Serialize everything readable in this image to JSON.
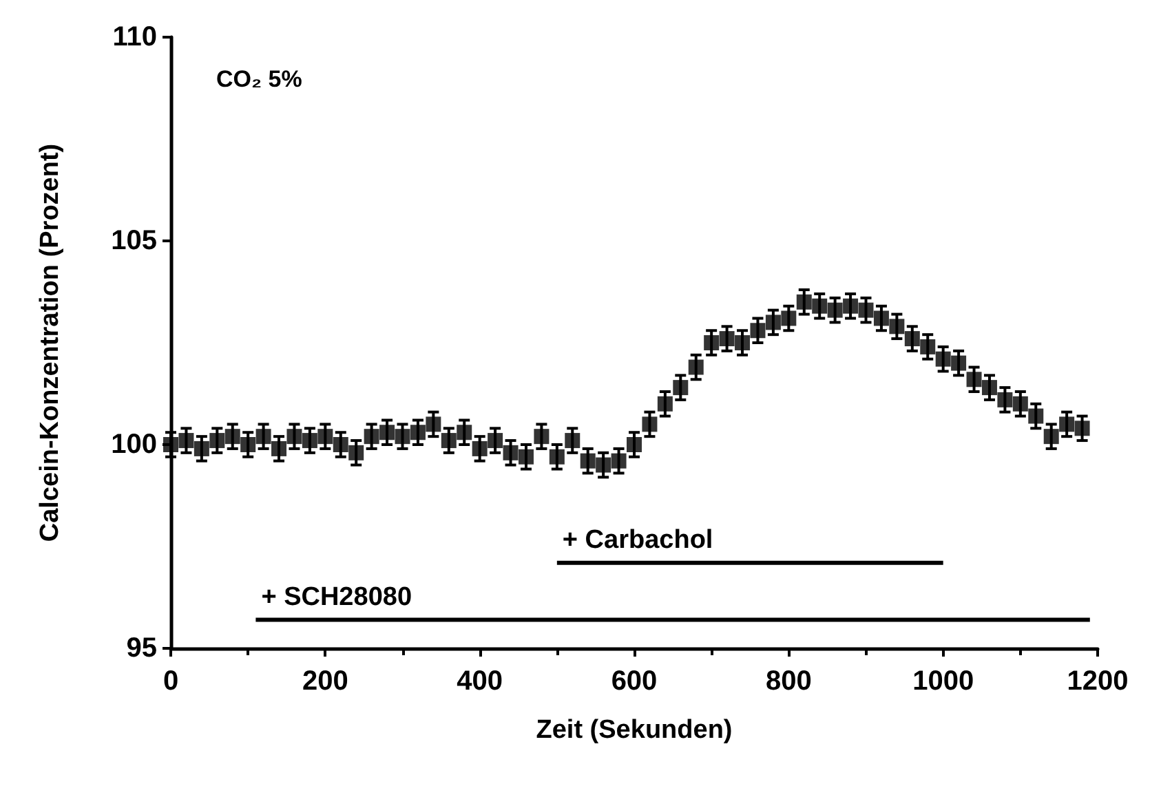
{
  "chart_data": {
    "type": "scatter",
    "xlabel": "Zeit (Sekunden)",
    "ylabel": "Calcein-Konzentration (Prozent)",
    "annotations": [
      "CO₂ 5%"
    ],
    "x": [
      0,
      20,
      40,
      60,
      80,
      100,
      120,
      140,
      160,
      180,
      200,
      220,
      240,
      260,
      280,
      300,
      320,
      340,
      360,
      380,
      400,
      420,
      440,
      460,
      480,
      500,
      520,
      540,
      560,
      580,
      600,
      620,
      640,
      660,
      680,
      700,
      720,
      740,
      760,
      780,
      800,
      820,
      840,
      860,
      880,
      900,
      920,
      940,
      960,
      980,
      1000,
      1020,
      1040,
      1060,
      1080,
      1100,
      1120,
      1140,
      1160,
      1180
    ],
    "series": [
      {
        "color": "#000000",
        "values": [
          100.0,
          100.1,
          99.9,
          100.1,
          100.2,
          100.0,
          100.2,
          99.9,
          100.2,
          100.1,
          100.2,
          100.0,
          99.8,
          100.2,
          100.3,
          100.2,
          100.3,
          100.5,
          100.1,
          100.3,
          99.9,
          100.1,
          99.8,
          99.7,
          100.2,
          99.7,
          100.1,
          99.6,
          99.5,
          99.6,
          100.0,
          100.5,
          101.0,
          101.4,
          101.9,
          102.5,
          102.6,
          102.5,
          102.8,
          103.0,
          103.1,
          103.5,
          103.4,
          103.3,
          103.4,
          103.3,
          103.1,
          102.9,
          102.6,
          102.4,
          102.1,
          102.0,
          101.6,
          101.4,
          101.1,
          101.0,
          100.7,
          100.2,
          100.5,
          100.4
        ],
        "errors": [
          0.3,
          0.3,
          0.3,
          0.3,
          0.3,
          0.3,
          0.3,
          0.3,
          0.3,
          0.3,
          0.3,
          0.3,
          0.3,
          0.3,
          0.3,
          0.3,
          0.3,
          0.3,
          0.3,
          0.3,
          0.3,
          0.3,
          0.3,
          0.3,
          0.3,
          0.3,
          0.3,
          0.3,
          0.3,
          0.3,
          0.3,
          0.3,
          0.3,
          0.3,
          0.3,
          0.3,
          0.3,
          0.3,
          0.3,
          0.3,
          0.3,
          0.3,
          0.3,
          0.3,
          0.3,
          0.3,
          0.3,
          0.3,
          0.3,
          0.3,
          0.3,
          0.3,
          0.3,
          0.3,
          0.3,
          0.3,
          0.3,
          0.3,
          0.3,
          0.3
        ]
      },
      {
        "type": "line",
        "marker": "none",
        "name": "+ Carbachol",
        "color": "#000000",
        "x": [
          500,
          1000
        ],
        "values": [
          97.1,
          97.1
        ]
      },
      {
        "type": "line",
        "marker": "none",
        "name": "+ SCH28080",
        "color": "#000000",
        "x": [
          110,
          1190
        ],
        "values": [
          95.7,
          95.7
        ]
      }
    ],
    "xlim": [
      0,
      1200
    ],
    "xticks": [
      0,
      200,
      400,
      600,
      800,
      1000,
      1200
    ],
    "ylim": [
      95,
      110
    ],
    "yticks": [
      95,
      100,
      105,
      110
    ],
    "marker": "square",
    "grid": false
  }
}
